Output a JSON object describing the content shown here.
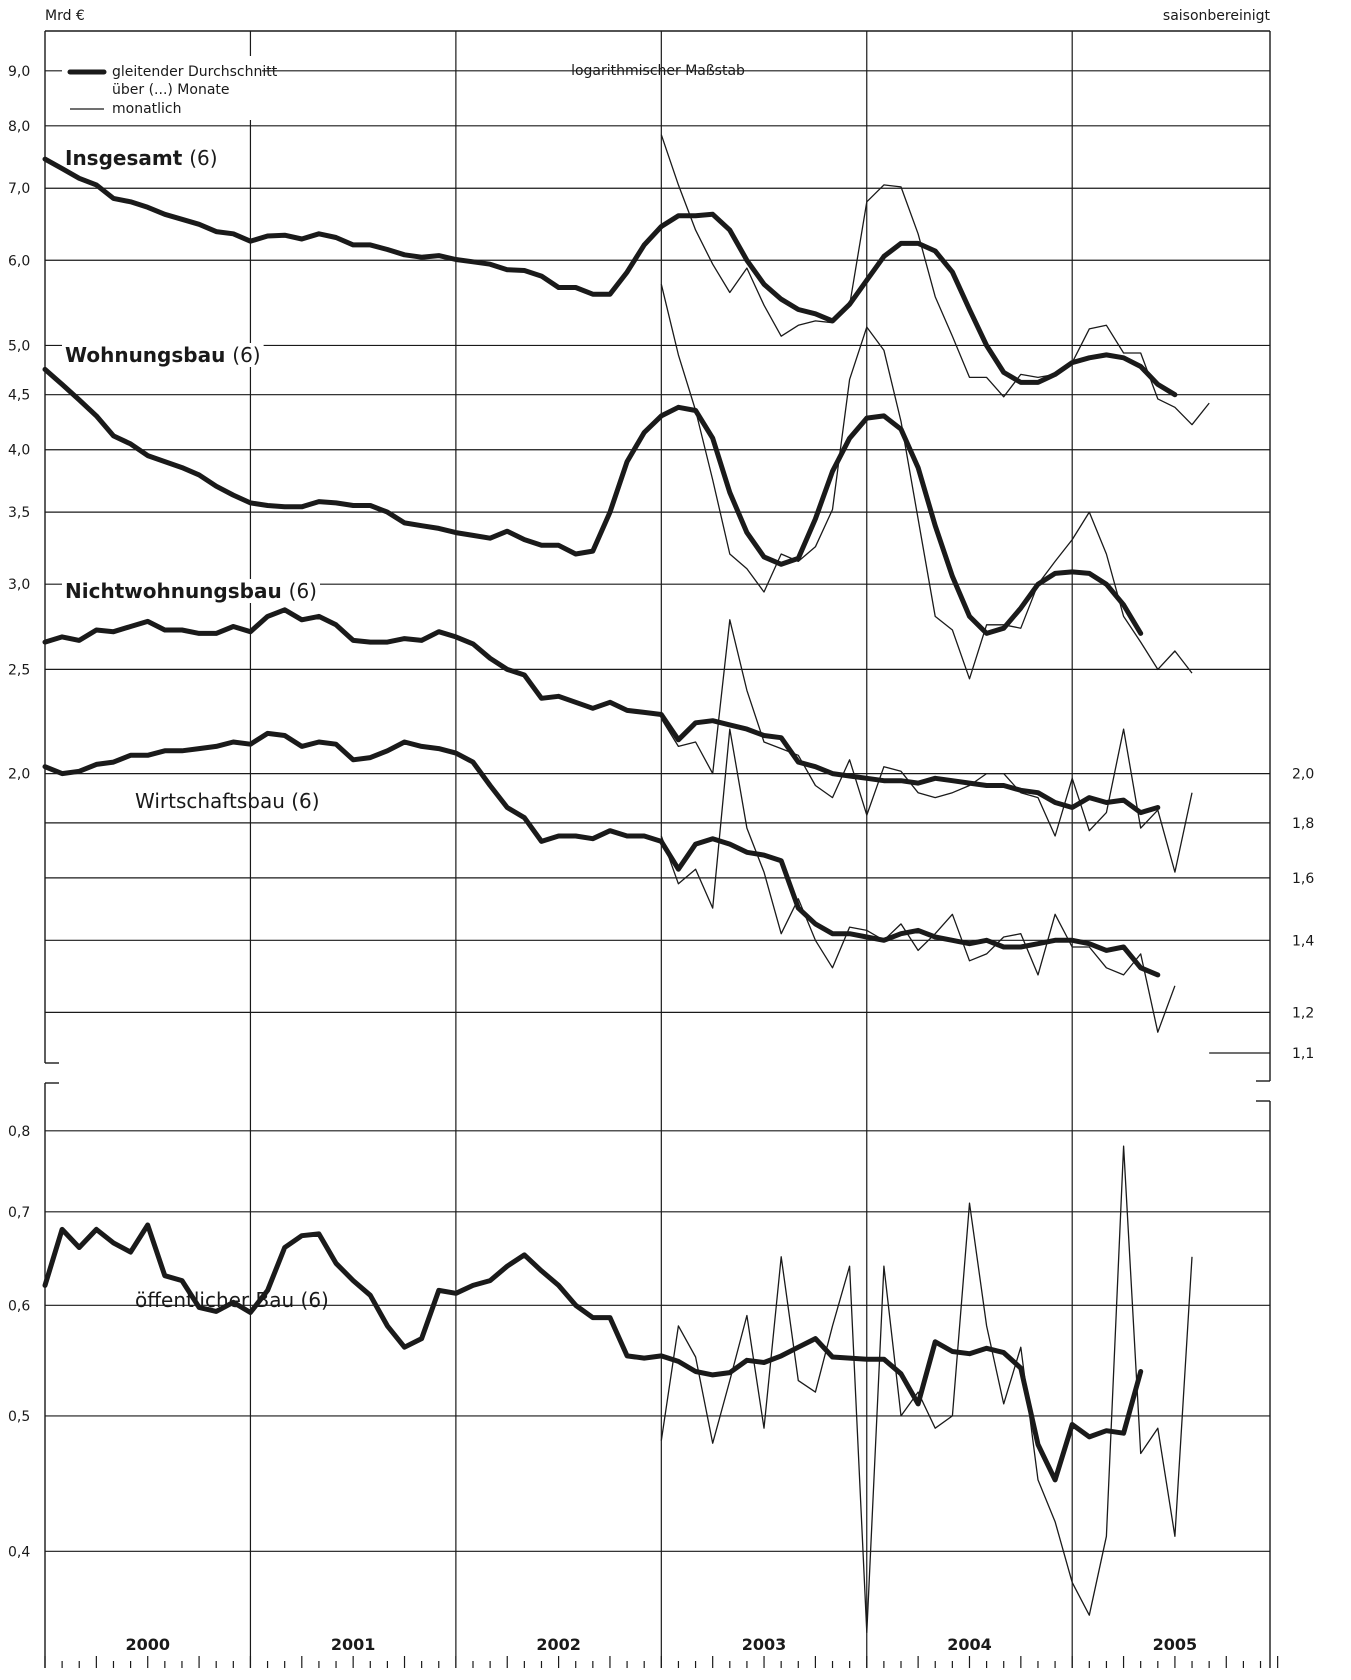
{
  "chart_data": {
    "type": "line",
    "unit_label": "Mrd €",
    "adjustment_label": "saisonbereinigt",
    "scale_note": "logarithmischer Maßstab",
    "scale": "log",
    "legend": {
      "avg_label_line1": "gleitender Durchschnitt",
      "avg_label_line2": "über (...) Monate",
      "monthly_label": "monatlich",
      "placement": "top-left"
    },
    "x_start": "2000-01",
    "x_end": "2005-12",
    "years": [
      "2000",
      "2001",
      "2002",
      "2003",
      "2004",
      "2005"
    ],
    "upper_panel": {
      "y_range": [
        1.1,
        9.8
      ],
      "left_ticks": [
        "9,0",
        "8,0",
        "7,0",
        "6,0",
        "5,0",
        "4,5",
        "4,0",
        "3,5",
        "3,0",
        "2,5",
        "2,0"
      ],
      "left_tick_values": [
        9.0,
        8.0,
        7.0,
        6.0,
        5.0,
        4.5,
        4.0,
        3.5,
        3.0,
        2.5,
        2.0
      ],
      "right_ticks": [
        "2,0",
        "1,8",
        "1,6",
        "1,4",
        "1,2",
        "1,1"
      ],
      "right_tick_values": [
        2.0,
        1.8,
        1.6,
        1.4,
        1.2,
        1.1
      ]
    },
    "lower_panel": {
      "y_range": [
        0.33,
        0.88
      ],
      "left_ticks": [
        "0,8",
        "0,7",
        "0,6",
        "0,5",
        "0,4"
      ],
      "left_tick_values": [
        0.8,
        0.7,
        0.6,
        0.5,
        0.4
      ]
    },
    "series": [
      {
        "name": "Insgesamt",
        "bracket": "(6)",
        "bold_label": true,
        "panel": "upper",
        "avg_start": "2000-01",
        "avg": [
          7.45,
          7.3,
          7.15,
          7.05,
          6.85,
          6.8,
          6.72,
          6.62,
          6.55,
          6.48,
          6.38,
          6.35,
          6.25,
          6.32,
          6.33,
          6.28,
          6.35,
          6.3,
          6.2,
          6.2,
          6.14,
          6.07,
          6.04,
          6.06,
          6.01,
          5.98,
          5.95,
          5.88,
          5.87,
          5.8,
          5.66,
          5.66,
          5.58,
          5.58,
          5.85,
          6.2,
          6.45,
          6.6,
          6.6,
          6.62,
          6.4,
          6.0,
          5.7,
          5.52,
          5.4,
          5.35,
          5.27,
          5.46,
          5.75,
          6.05,
          6.22,
          6.22,
          6.12,
          5.85,
          5.4,
          5.0,
          4.72,
          4.62,
          4.62,
          4.7,
          4.82,
          4.87,
          4.9,
          4.87,
          4.78,
          4.6,
          4.5
        ],
        "monthly_start": "2003-01",
        "monthly": [
          7.85,
          7.05,
          6.4,
          5.95,
          5.6,
          5.9,
          5.45,
          5.1,
          5.22,
          5.27,
          5.25,
          5.45,
          6.8,
          7.05,
          7.02,
          6.35,
          5.55,
          5.1,
          4.67,
          4.67,
          4.48,
          4.7,
          4.67,
          4.7,
          4.82,
          5.18,
          5.22,
          4.92,
          4.92,
          4.46,
          4.38,
          4.22,
          4.42
        ]
      },
      {
        "name": "Wohnungsbau",
        "bracket": "(6)",
        "bold_label": true,
        "panel": "upper",
        "avg_start": "2000-01",
        "avg": [
          4.75,
          4.6,
          4.45,
          4.3,
          4.12,
          4.05,
          3.95,
          3.9,
          3.85,
          3.79,
          3.7,
          3.63,
          3.57,
          3.55,
          3.54,
          3.54,
          3.58,
          3.57,
          3.55,
          3.55,
          3.5,
          3.42,
          3.4,
          3.38,
          3.35,
          3.33,
          3.31,
          3.36,
          3.3,
          3.26,
          3.26,
          3.2,
          3.22,
          3.5,
          3.9,
          4.15,
          4.3,
          4.38,
          4.35,
          4.1,
          3.65,
          3.35,
          3.18,
          3.13,
          3.17,
          3.45,
          3.82,
          4.1,
          4.28,
          4.3,
          4.18,
          3.85,
          3.4,
          3.05,
          2.8,
          2.7,
          2.73,
          2.85,
          3.0,
          3.07,
          3.08,
          3.07,
          3.0,
          2.87,
          2.7
        ],
        "monthly_start": "2003-01",
        "monthly": [
          5.7,
          4.9,
          4.35,
          3.75,
          3.2,
          3.1,
          2.95,
          3.2,
          3.15,
          3.25,
          3.52,
          4.65,
          5.2,
          4.95,
          4.25,
          3.45,
          2.8,
          2.72,
          2.45,
          2.75,
          2.75,
          2.73,
          3.0,
          3.15,
          3.3,
          3.5,
          3.2,
          2.8,
          2.65,
          2.5,
          2.6,
          2.48
        ]
      },
      {
        "name": "Nichtwohnungsbau",
        "bracket": "(6)",
        "bold_label": true,
        "panel": "upper",
        "avg_start": "2000-01",
        "avg": [
          2.65,
          2.68,
          2.66,
          2.72,
          2.71,
          2.74,
          2.77,
          2.72,
          2.72,
          2.7,
          2.7,
          2.74,
          2.71,
          2.8,
          2.84,
          2.78,
          2.8,
          2.75,
          2.66,
          2.65,
          2.65,
          2.67,
          2.66,
          2.71,
          2.68,
          2.64,
          2.56,
          2.5,
          2.47,
          2.35,
          2.36,
          2.33,
          2.3,
          2.33,
          2.29,
          2.28,
          2.27,
          2.15,
          2.23,
          2.24,
          2.22,
          2.2,
          2.17,
          2.16,
          2.05,
          2.03,
          2.0,
          1.99,
          1.98,
          1.97,
          1.97,
          1.96,
          1.98,
          1.97,
          1.96,
          1.95,
          1.95,
          1.93,
          1.92,
          1.88,
          1.86,
          1.9,
          1.88,
          1.89,
          1.84,
          1.86
        ],
        "monthly_start": "2003-01",
        "monthly": [
          2.25,
          2.12,
          2.14,
          2.0,
          2.78,
          2.39,
          2.14,
          2.11,
          2.08,
          1.95,
          1.9,
          2.06,
          1.83,
          2.03,
          2.01,
          1.92,
          1.9,
          1.92,
          1.95,
          2.0,
          2.0,
          1.92,
          1.9,
          1.75,
          1.98,
          1.77,
          1.84,
          2.2,
          1.78,
          1.85,
          1.62,
          1.92
        ]
      },
      {
        "name": "Wirtschaftsbau",
        "bracket": "(6)",
        "bold_label": false,
        "panel": "upper",
        "avg_start": "2000-01",
        "avg": [
          2.03,
          2.0,
          2.01,
          2.04,
          2.05,
          2.08,
          2.08,
          2.1,
          2.1,
          2.11,
          2.12,
          2.14,
          2.13,
          2.18,
          2.17,
          2.12,
          2.14,
          2.13,
          2.06,
          2.07,
          2.1,
          2.14,
          2.12,
          2.11,
          2.09,
          2.05,
          1.95,
          1.86,
          1.82,
          1.73,
          1.75,
          1.75,
          1.74,
          1.77,
          1.75,
          1.75,
          1.73,
          1.63,
          1.72,
          1.74,
          1.72,
          1.69,
          1.68,
          1.66,
          1.5,
          1.45,
          1.42,
          1.42,
          1.41,
          1.4,
          1.42,
          1.43,
          1.41,
          1.4,
          1.39,
          1.4,
          1.38,
          1.38,
          1.39,
          1.4,
          1.4,
          1.39,
          1.37,
          1.38,
          1.32,
          1.3
        ],
        "monthly_start": "2003-01",
        "monthly": [
          1.75,
          1.58,
          1.63,
          1.5,
          2.2,
          1.78,
          1.62,
          1.42,
          1.53,
          1.4,
          1.32,
          1.44,
          1.43,
          1.4,
          1.45,
          1.37,
          1.42,
          1.48,
          1.34,
          1.36,
          1.41,
          1.42,
          1.3,
          1.48,
          1.38,
          1.38,
          1.32,
          1.3,
          1.36,
          1.15,
          1.27
        ]
      },
      {
        "name": "öffentlicher Bau",
        "bracket": "(6)",
        "bold_label": false,
        "panel": "lower",
        "avg_start": "2000-01",
        "avg": [
          0.62,
          0.68,
          0.66,
          0.68,
          0.665,
          0.655,
          0.685,
          0.63,
          0.625,
          0.598,
          0.594,
          0.603,
          0.593,
          0.615,
          0.66,
          0.673,
          0.675,
          0.643,
          0.625,
          0.61,
          0.58,
          0.56,
          0.568,
          0.615,
          0.612,
          0.62,
          0.625,
          0.64,
          0.652,
          0.635,
          0.62,
          0.6,
          0.588,
          0.588,
          0.552,
          0.55,
          0.552,
          0.547,
          0.538,
          0.535,
          0.537,
          0.548,
          0.546,
          0.552,
          0.56,
          0.568,
          0.551,
          0.55,
          0.549,
          0.549,
          0.536,
          0.51,
          0.565,
          0.556,
          0.554,
          0.559,
          0.555,
          0.541,
          0.477,
          0.45,
          0.493,
          0.483,
          0.488,
          0.486,
          0.538
        ],
        "monthly_start": "2003-01",
        "monthly": [
          0.48,
          0.58,
          0.551,
          0.478,
          0.53,
          0.59,
          0.49,
          0.65,
          0.53,
          0.52,
          0.58,
          0.64,
          0.35,
          0.64,
          0.5,
          0.52,
          0.49,
          0.5,
          0.71,
          0.58,
          0.51,
          0.56,
          0.45,
          0.42,
          0.38,
          0.36,
          0.41,
          0.78,
          0.47,
          0.49,
          0.41,
          0.65
        ]
      }
    ]
  }
}
